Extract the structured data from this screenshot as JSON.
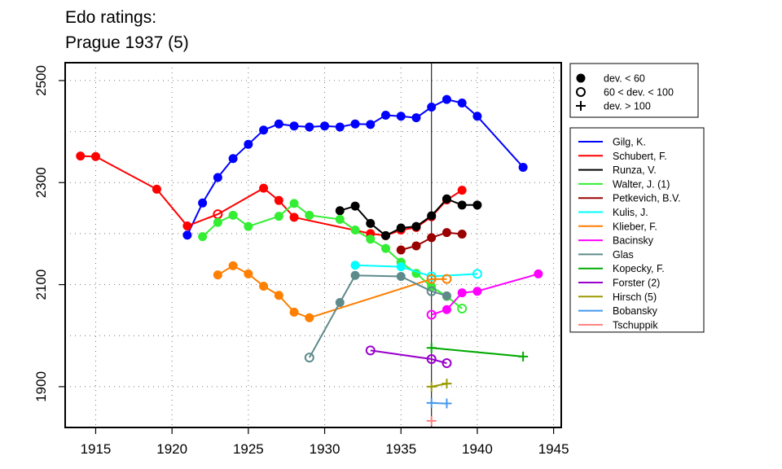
{
  "chart_data": {
    "type": "line",
    "title": "Edo ratings:",
    "subtitle": "Prague 1937 (5)",
    "xlim": [
      1913,
      1945.5
    ],
    "ylim": [
      1820,
      2535
    ],
    "xticks": [
      1915,
      1920,
      1925,
      1930,
      1935,
      1940,
      1945
    ],
    "xtick_labels": [
      "1915",
      "1920",
      "1925",
      "1930",
      "1935",
      "1940",
      "1945"
    ],
    "yticks": [
      1900,
      2100,
      2300,
      2500
    ],
    "ytick_labels": [
      "1900",
      "2100",
      "2300",
      "2500"
    ],
    "ygrid": [
      1900,
      2000,
      2100,
      2200,
      2300,
      2400,
      2500
    ],
    "grid": "dotted",
    "vline": 1937,
    "marker_legend": {
      "position": "top-right",
      "items": [
        {
          "marker": "filled",
          "label": "dev. < 60"
        },
        {
          "marker": "open",
          "label": "60 < dev. < 100"
        },
        {
          "marker": "plus",
          "label": "dev. > 100"
        }
      ]
    },
    "series_legend_position": "right",
    "series": [
      {
        "name": "Gilg, K.",
        "color": "#0000ff",
        "points": [
          [
            1921,
            2197,
            "filled"
          ],
          [
            1922,
            2260,
            "filled"
          ],
          [
            1923,
            2310,
            "filled"
          ],
          [
            1924,
            2347,
            "filled"
          ],
          [
            1925,
            2375,
            "filled"
          ],
          [
            1926,
            2403,
            "filled"
          ],
          [
            1927,
            2415,
            "filled"
          ],
          [
            1928,
            2411,
            "filled"
          ],
          [
            1929,
            2409,
            "filled"
          ],
          [
            1930,
            2411,
            "filled"
          ],
          [
            1931,
            2409,
            "filled"
          ],
          [
            1932,
            2415,
            "filled"
          ],
          [
            1933,
            2414,
            "filled"
          ],
          [
            1934,
            2432,
            "filled"
          ],
          [
            1935,
            2430,
            "filled"
          ],
          [
            1936,
            2427,
            "filled"
          ],
          [
            1937,
            2448,
            "filled"
          ],
          [
            1938,
            2463,
            "filled"
          ],
          [
            1939,
            2456,
            "filled"
          ],
          [
            1940,
            2430,
            "filled"
          ],
          [
            1943,
            2330,
            "filled"
          ]
        ]
      },
      {
        "name": "Schubert, F.",
        "color": "#ff0000",
        "points": [
          [
            1914,
            2352,
            "filled"
          ],
          [
            1915,
            2351,
            "filled"
          ],
          [
            1919,
            2287,
            "filled"
          ],
          [
            1921,
            2215,
            "filled"
          ],
          [
            1923,
            2238,
            "open"
          ],
          [
            1926,
            2289,
            "filled"
          ],
          [
            1927,
            2265,
            "filled"
          ],
          [
            1928,
            2232,
            "filled"
          ],
          [
            1933,
            2200,
            "filled"
          ],
          [
            1934,
            2196,
            "filled"
          ],
          [
            1935,
            2207,
            "filled"
          ],
          [
            1936,
            2212,
            "filled"
          ],
          [
            1937,
            2233,
            "filled"
          ],
          [
            1938,
            2266,
            "filled"
          ],
          [
            1939,
            2285,
            "filled"
          ]
        ]
      },
      {
        "name": "Runza, V.",
        "color": "#000000",
        "points": [
          [
            1931,
            2245,
            "filled"
          ],
          [
            1932,
            2254,
            "filled"
          ],
          [
            1933,
            2220,
            "filled"
          ],
          [
            1934,
            2196,
            "filled"
          ],
          [
            1935,
            2211,
            "filled"
          ],
          [
            1936,
            2214,
            "filled"
          ],
          [
            1937,
            2235,
            "filled"
          ],
          [
            1938,
            2268,
            "filled"
          ],
          [
            1939,
            2256,
            "filled"
          ],
          [
            1940,
            2256,
            "filled"
          ]
        ]
      },
      {
        "name": "Walter, J. (1)",
        "color": "#33ee33",
        "points": [
          [
            1922,
            2194,
            "filled"
          ],
          [
            1923,
            2222,
            "filled"
          ],
          [
            1924,
            2236,
            "filled"
          ],
          [
            1925,
            2214,
            "filled"
          ],
          [
            1927,
            2234,
            "filled"
          ],
          [
            1928,
            2259,
            "filled"
          ],
          [
            1929,
            2236,
            "filled"
          ],
          [
            1931,
            2228,
            "filled"
          ],
          [
            1932,
            2207,
            "filled"
          ],
          [
            1933,
            2189,
            "filled"
          ],
          [
            1934,
            2171,
            "filled"
          ],
          [
            1935,
            2144,
            "filled"
          ],
          [
            1936,
            2122,
            "filled"
          ],
          [
            1937,
            2096,
            "filled"
          ],
          [
            1938,
            2077,
            "filled"
          ],
          [
            1939,
            2053,
            "open"
          ]
        ]
      },
      {
        "name": "Petkevich, B.V.",
        "color": "#990000",
        "points": [
          [
            1935,
            2168,
            "filled"
          ],
          [
            1936,
            2176,
            "filled"
          ],
          [
            1937,
            2192,
            "filled"
          ],
          [
            1938,
            2202,
            "filled"
          ],
          [
            1939,
            2199,
            "filled"
          ]
        ]
      },
      {
        "name": "Kulis, J.",
        "color": "#00ffff",
        "points": [
          [
            1932,
            2138,
            "filled"
          ],
          [
            1935,
            2135,
            "filled"
          ],
          [
            1937,
            2116,
            "open"
          ],
          [
            1940,
            2121,
            "open"
          ]
        ]
      },
      {
        "name": "Klieber, F.",
        "color": "#ff7f00",
        "points": [
          [
            1923,
            2119,
            "filled"
          ],
          [
            1924,
            2137,
            "filled"
          ],
          [
            1925,
            2121,
            "filled"
          ],
          [
            1926,
            2097,
            "filled"
          ],
          [
            1927,
            2079,
            "filled"
          ],
          [
            1928,
            2046,
            "filled"
          ],
          [
            1929,
            2035,
            "filled"
          ],
          [
            1937,
            2111,
            "open"
          ],
          [
            1938,
            2111,
            "open"
          ]
        ]
      },
      {
        "name": "Bacinsky",
        "color": "#ff00ff",
        "points": [
          [
            1937,
            2041,
            "open"
          ],
          [
            1938,
            2051,
            "filled"
          ],
          [
            1939,
            2084,
            "filled"
          ],
          [
            1940,
            2087,
            "filled"
          ],
          [
            1944,
            2121,
            "filled"
          ]
        ]
      },
      {
        "name": "Glas",
        "color": "#5f8a8b",
        "points": [
          [
            1929,
            1957,
            "open"
          ],
          [
            1931,
            2065,
            "filled"
          ],
          [
            1932,
            2118,
            "filled"
          ],
          [
            1935,
            2116,
            "filled"
          ],
          [
            1937,
            2087,
            "open"
          ],
          [
            1938,
            2078,
            "filled"
          ]
        ]
      },
      {
        "name": "Kopecky, F.",
        "color": "#00aa00",
        "points": [
          [
            1937,
            1976,
            "plus"
          ],
          [
            1943,
            1959,
            "plus"
          ]
        ]
      },
      {
        "name": "Forster (2)",
        "color": "#9900cc",
        "points": [
          [
            1933,
            1971,
            "open"
          ],
          [
            1937,
            1954,
            "open"
          ],
          [
            1938,
            1946,
            "open"
          ]
        ]
      },
      {
        "name": "Hirsch (5)",
        "color": "#999900",
        "points": [
          [
            1937,
            1900,
            "plus"
          ],
          [
            1938,
            1906,
            "plus"
          ]
        ]
      },
      {
        "name": "Bobansky",
        "color": "#4499ee",
        "points": [
          [
            1937,
            1868,
            "plus"
          ],
          [
            1938,
            1867,
            "plus"
          ]
        ]
      },
      {
        "name": "Tschuppik",
        "color": "#ff7f7f",
        "points": [
          [
            1937,
            1833,
            "plus"
          ]
        ]
      }
    ]
  }
}
